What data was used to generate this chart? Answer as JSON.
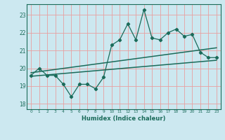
{
  "xlabel": "Humidex (Indice chaleur)",
  "bg_color": "#cce8f0",
  "grid_color": "#e8a0a0",
  "line_color": "#1a6b5a",
  "xlim": [
    -0.5,
    23.5
  ],
  "ylim": [
    17.7,
    23.6
  ],
  "yticks": [
    18,
    19,
    20,
    21,
    22,
    23
  ],
  "xticks": [
    0,
    1,
    2,
    3,
    4,
    5,
    6,
    7,
    8,
    9,
    10,
    11,
    12,
    13,
    14,
    15,
    16,
    17,
    18,
    19,
    20,
    21,
    22,
    23
  ],
  "data_x": [
    0,
    1,
    2,
    3,
    4,
    5,
    6,
    7,
    8,
    9,
    10,
    11,
    12,
    13,
    14,
    15,
    16,
    17,
    18,
    19,
    20,
    21,
    22,
    23
  ],
  "data_y": [
    19.6,
    20.0,
    19.6,
    19.6,
    19.1,
    18.4,
    19.1,
    19.1,
    18.85,
    19.5,
    21.3,
    21.6,
    22.5,
    21.6,
    23.3,
    21.7,
    21.6,
    22.0,
    22.2,
    21.8,
    21.9,
    20.9,
    20.6,
    20.6
  ],
  "trend1_x": [
    0,
    23
  ],
  "trend1_y": [
    19.75,
    21.15
  ],
  "trend2_x": [
    0,
    23
  ],
  "trend2_y": [
    19.55,
    20.45
  ]
}
